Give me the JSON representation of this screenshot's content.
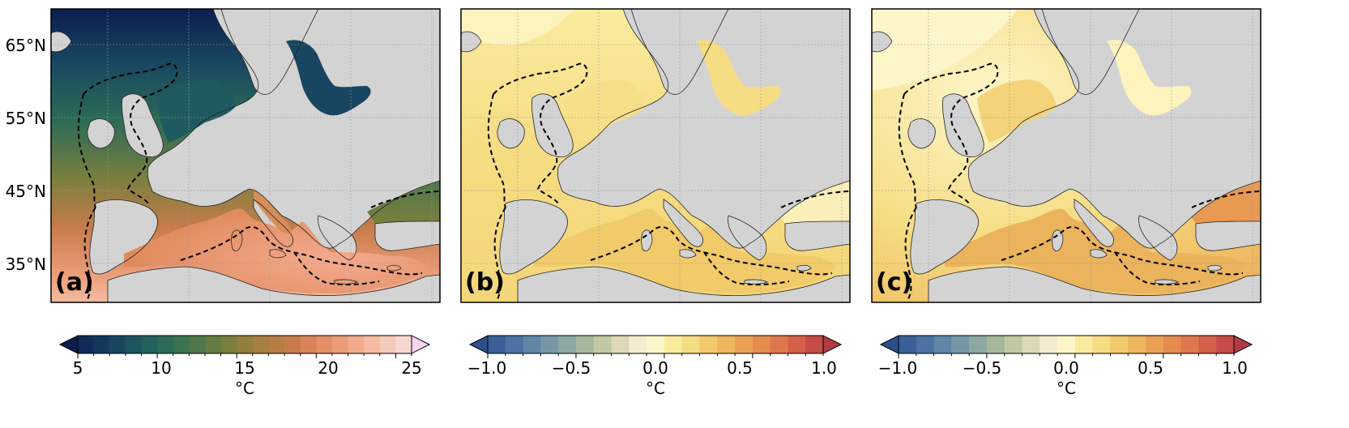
{
  "lat_labels": [
    "65°N",
    "55°N",
    "45°N",
    "35°N"
  ],
  "panels": [
    {
      "label": "(a)",
      "variable": "sea-surface-temperature-map",
      "colorbar": {
        "unit": "°C",
        "ticks": [
          "5",
          "10",
          "15",
          "20",
          "25"
        ],
        "range": [
          5,
          25
        ],
        "colors": [
          "#0b1e4e",
          "#0f2a56",
          "#13385e",
          "#184660",
          "#1c5460",
          "#22615d",
          "#2c6b57",
          "#3a7350",
          "#4e784a",
          "#647c43",
          "#7b7f3e",
          "#927f3c",
          "#a67e3e",
          "#b87d43",
          "#c97c4b",
          "#d88458",
          "#e38f68",
          "#eb9c79",
          "#f1ab8b",
          "#f4bba1",
          "#f6cab8",
          "#f7d8d0",
          "#f8d4ee"
        ]
      }
    },
    {
      "label": "(b)",
      "variable": "temperature-difference-map",
      "colorbar": {
        "unit": "°C",
        "ticks": [
          "−1.0",
          "−0.5",
          "0.0",
          "0.5",
          "1.0"
        ],
        "range": [
          -1,
          1
        ],
        "colors": [
          "#2d4f8e",
          "#3a5f99",
          "#4a72a2",
          "#5f86a6",
          "#7698a6",
          "#8da8a2",
          "#a6b89c",
          "#c2c9a2",
          "#ddd8b6",
          "#f3ecce",
          "#fdf6c8",
          "#faeb9f",
          "#f6dc82",
          "#f2ca6c",
          "#eeb65e",
          "#eaa155",
          "#e58b50",
          "#df774c",
          "#d4604a",
          "#c54c48",
          "#b33c44"
        ]
      }
    },
    {
      "label": "(c)",
      "variable": "temperature-difference-map",
      "colorbar": {
        "unit": "°C",
        "ticks": [
          "−1.0",
          "−0.5",
          "0.0",
          "0.5",
          "1.0"
        ],
        "range": [
          -1,
          1
        ],
        "colors": [
          "#2d4f8e",
          "#3a5f99",
          "#4a72a2",
          "#5f86a6",
          "#7698a6",
          "#8da8a2",
          "#a6b89c",
          "#c2c9a2",
          "#ddd8b6",
          "#f3ecce",
          "#fdf6c8",
          "#faeb9f",
          "#f6dc82",
          "#f2ca6c",
          "#eeb65e",
          "#eaa155",
          "#e58b50",
          "#df774c",
          "#d4604a",
          "#c54c48",
          "#b33c44"
        ]
      }
    }
  ],
  "colors": {
    "land": "#d3d3d3",
    "frame": "#000000",
    "grid": "#9a9a9a"
  }
}
